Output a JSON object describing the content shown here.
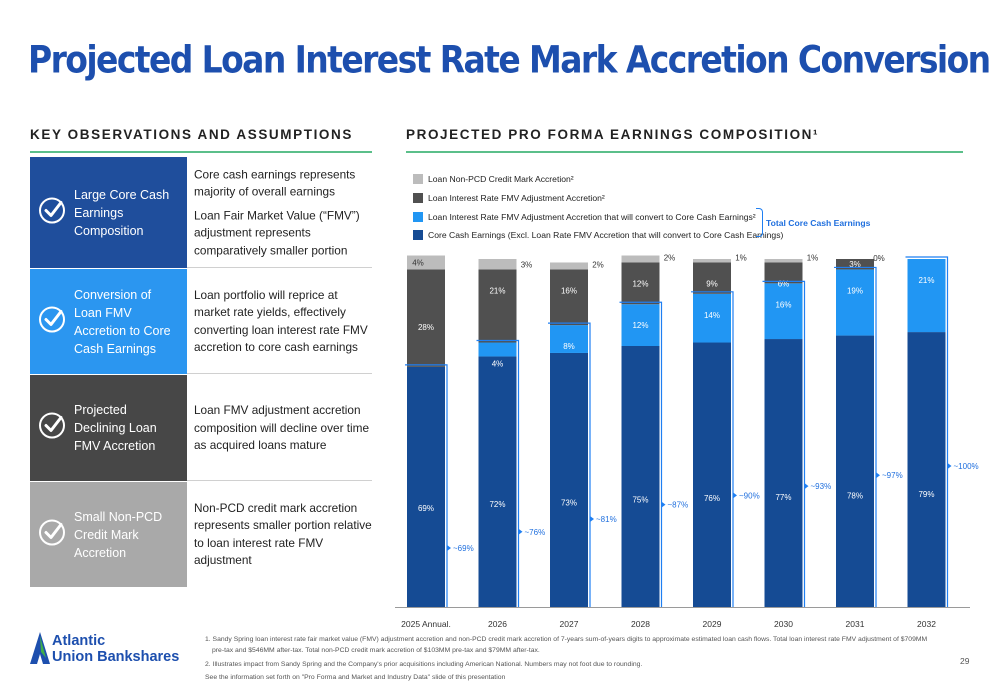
{
  "title": "Projected Loan Interest Rate Mark Accretion Conversion",
  "left_section_title": "KEY OBSERVATIONS AND ASSUMPTIONS",
  "right_section_title": "PROJECTED PRO FORMA EARNINGS COMPOSITION¹",
  "observations": [
    {
      "label": "Large   Core Cash Earnings Composition",
      "color": "#1f4e9c",
      "texts": [
        "Core cash earnings represents majority of overall earnings",
        "Loan Fair Market Value (“FMV”) adjustment represents comparatively smaller portion"
      ]
    },
    {
      "label": "Conversion of  Loan FMV  Accretion to Core Cash Earnings",
      "color": "#2b96f0",
      "texts": [
        "Loan portfolio will reprice at market rate yields, effectively converting loan interest rate FMV accretion to core cash earnings"
      ]
    },
    {
      "label": "Projected Declining Loan FMV Accretion",
      "color": "#474747",
      "texts": [
        "Loan FMV adjustment accretion composition will decline over time as acquired loans mature"
      ]
    },
    {
      "label": "Small Non-PCD Credit Mark Accretion",
      "color": "#a9a9a9",
      "texts": [
        "Non-PCD credit mark accretion represents smaller portion relative to loan interest rate FMV adjustment"
      ]
    }
  ],
  "legend": [
    {
      "label": "Loan Non-PCD Credit Mark Accretion²",
      "color": "#bcbcbc"
    },
    {
      "label": "Loan Interest Rate FMV Adjustment Accretion²",
      "color": "#505050"
    },
    {
      "label": "Loan Interest Rate FMV Adjustment Accretion that will convert to Core Cash Earnings²",
      "color": "#2196f3"
    },
    {
      "label": "Core Cash Earnings (Excl. Loan Rate FMV Accretion that will convert to Core Cash Earnings)",
      "color": "#154b94"
    }
  ],
  "total_core_label": "Total Core Cash Earnings",
  "chart_data": {
    "type": "bar",
    "stacked": true,
    "categories": [
      "2025 Annual.",
      "2026",
      "2027",
      "2028",
      "2029",
      "2030",
      "2031",
      "2032"
    ],
    "series": [
      {
        "name": "Core Cash Earnings (Excl. Loan Rate FMV Accretion that will convert to Core Cash Earnings)",
        "color": "#154b94",
        "values": [
          69,
          72,
          73,
          75,
          76,
          77,
          78,
          79
        ],
        "labels": [
          "69%",
          "72%",
          "73%",
          "75%",
          "76%",
          "77%",
          "78%",
          "79%"
        ]
      },
      {
        "name": "Loan Interest Rate FMV Adjustment Accretion that will convert to Core Cash Earnings",
        "color": "#2196f3",
        "values": [
          0,
          4,
          8,
          12,
          14,
          16,
          19,
          21
        ],
        "labels": [
          "",
          "4%",
          "8%",
          "12%",
          "14%",
          "16%",
          "19%",
          "21%"
        ]
      },
      {
        "name": "Loan Interest Rate FMV Adjustment Accretion",
        "color": "#505050",
        "values": [
          28,
          21,
          16,
          12,
          9,
          6,
          3,
          0
        ],
        "labels": [
          "28%",
          "21%",
          "16%",
          "12%",
          "9%",
          "6%",
          "3%",
          ""
        ]
      },
      {
        "name": "Loan Non-PCD Credit Mark Accretion",
        "color": "#bcbcbc",
        "values": [
          4,
          3,
          2,
          2,
          1,
          1,
          0,
          0
        ],
        "labels": [
          "4%",
          "3%",
          "2%",
          "2%",
          "1%",
          "1%",
          "0%",
          ""
        ]
      }
    ],
    "total_core_cash": [
      69,
      76,
      81,
      87,
      90,
      93,
      97,
      100
    ],
    "total_core_labels": [
      "~69%",
      "~76%",
      "~81%",
      "~87%",
      "~90%",
      "~93%",
      "~97%",
      "~100%"
    ],
    "ylim": [
      0,
      100
    ],
    "legend_position": "top-left"
  },
  "footnotes": [
    "1. Sandy Spring loan interest rate fair market value (FMV) adjustment accretion and non-PCD credit mark accretion of 7-years sum-of-years digits to approximate estimated loan cash flows. Total loan interest rate FMV adjustment of $709MM",
    "pre-tax and $546MM after-tax. Total non-PCD credit mark accretion of $103MM pre-tax and $79MM after-tax.",
    "2. Illustrates impact from Sandy Spring and the Company's prior acquisitions including American National.  Numbers may not foot due to rounding.",
    "See the information set forth on \"Pro Forma and Market and Industry Data\" slide of this presentation"
  ],
  "logo_line1": "Atlantic",
  "logo_line2": "Union Bankshares",
  "page_number": "29"
}
